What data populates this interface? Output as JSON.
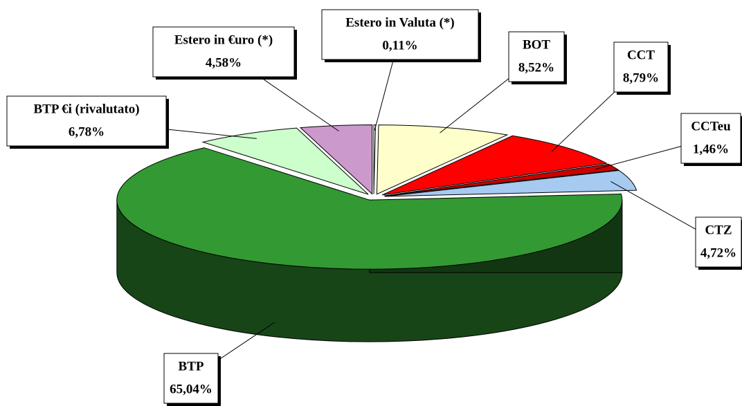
{
  "chart_data": {
    "type": "pie",
    "categories": [
      "Estero in Valuta (*)",
      "BOT",
      "CCT",
      "CCTeu",
      "CTZ",
      "BTP",
      "BTP €i (rivalutato)",
      "Estero in €uro (*)"
    ],
    "values": [
      0.11,
      8.52,
      8.79,
      1.46,
      4.72,
      65.04,
      6.78,
      4.58
    ],
    "value_labels": [
      "0,11%",
      "8,52%",
      "8,79%",
      "1,46%",
      "4,72%",
      "65,04%",
      "6,78%",
      "4,58%"
    ],
    "colors": [
      "#ffffff",
      "#ffffcc",
      "#ff0000",
      "#cc0000",
      "#a6caf0",
      "#339933",
      "#ccffcc",
      "#cc99cc"
    ]
  }
}
